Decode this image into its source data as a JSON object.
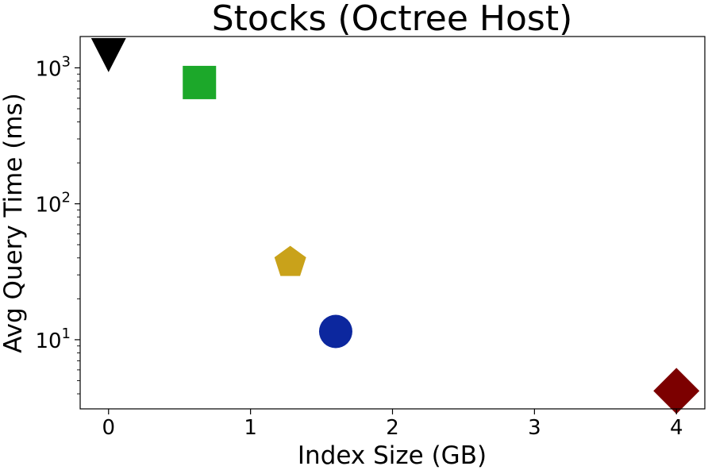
{
  "chart_data": {
    "type": "scatter",
    "title": "Stocks (Octree Host)",
    "xlabel": "Index Size (GB)",
    "ylabel": "Avg Query Time (ms)",
    "xlim": [
      -0.2,
      4.2
    ],
    "ylim": [
      3.1,
      1700
    ],
    "yscale": "log",
    "grid": false,
    "x_ticks": [
      0,
      1,
      2,
      3,
      4
    ],
    "x_tick_labels": [
      "0",
      "1",
      "2",
      "3",
      "4"
    ],
    "y_ticks": [
      10,
      100,
      1000
    ],
    "y_tick_base": "10",
    "y_tick_exponents": [
      "1",
      "2",
      "3"
    ],
    "points": [
      {
        "x": 0.0,
        "y": 1250,
        "marker": "triangle-down",
        "color": "#000000"
      },
      {
        "x": 0.64,
        "y": 780,
        "marker": "square",
        "color": "#1ca82a"
      },
      {
        "x": 1.28,
        "y": 37,
        "marker": "pentagon",
        "color": "#c9a21a"
      },
      {
        "x": 1.6,
        "y": 11.5,
        "marker": "circle",
        "color": "#0c279e"
      },
      {
        "x": 4.0,
        "y": 4.2,
        "marker": "diamond",
        "color": "#7c0000"
      }
    ]
  }
}
